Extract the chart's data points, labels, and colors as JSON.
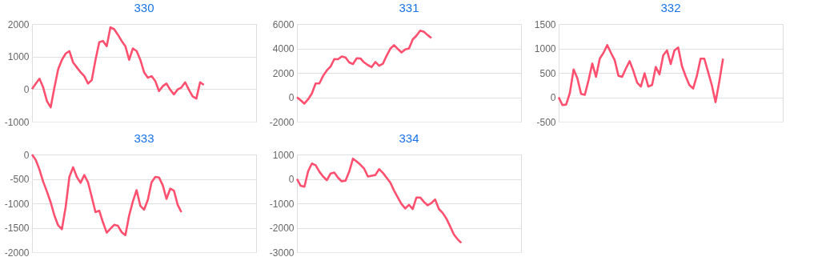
{
  "chart_data": [
    {
      "type": "line",
      "title": "330",
      "categories": [
        null,
        null,
        null,
        null,
        null,
        null,
        null,
        null,
        null,
        null,
        null,
        null,
        null,
        null,
        null,
        null,
        null,
        null,
        null,
        null,
        null,
        null,
        null,
        null,
        null,
        null,
        null,
        null,
        null,
        null,
        null,
        null,
        null,
        null,
        null,
        null,
        null,
        null,
        null,
        null,
        null,
        null,
        null,
        null,
        null,
        null,
        null,
        null,
        null,
        null,
        null,
        null,
        null,
        null,
        null,
        null,
        null,
        null,
        null,
        null,
        null
      ],
      "series": [
        {
          "color": "#ff5070",
          "values": [
            0,
            170,
            320,
            50,
            -370,
            -560,
            50,
            610,
            900,
            1090,
            1170,
            820,
            670,
            520,
            400,
            170,
            280,
            900,
            1440,
            1480,
            1320,
            1900,
            1840,
            1670,
            1480,
            1320,
            900,
            1250,
            1170,
            900,
            520,
            350,
            400,
            250,
            -60,
            90,
            170,
            -20,
            -160,
            -10,
            50,
            210,
            -20,
            -220,
            -290,
            210,
            130,
            null,
            null,
            null,
            null,
            null,
            null,
            null,
            null,
            null,
            null,
            null,
            null,
            null,
            null
          ]
        }
      ],
      "ylim": [
        -1000,
        2000
      ],
      "yticks": [
        -1000,
        0,
        1000,
        2000
      ],
      "grid": "y",
      "tick_labels": "y"
    },
    {
      "type": "line",
      "title": "331",
      "categories": [
        null,
        null,
        null,
        null,
        null,
        null,
        null,
        null,
        null,
        null,
        null,
        null,
        null,
        null,
        null,
        null,
        null,
        null,
        null,
        null,
        null,
        null,
        null,
        null,
        null,
        null,
        null,
        null,
        null,
        null,
        null,
        null,
        null,
        null,
        null,
        null,
        null,
        null,
        null,
        null,
        null,
        null,
        null,
        null,
        null,
        null,
        null,
        null,
        null,
        null,
        null,
        null,
        null,
        null,
        null,
        null,
        null,
        null,
        null,
        null,
        null
      ],
      "series": [
        {
          "color": "#ff5070",
          "values": [
            0,
            -250,
            -520,
            -160,
            310,
            1130,
            1130,
            1750,
            2200,
            2520,
            3130,
            3110,
            3340,
            3260,
            2850,
            2720,
            3200,
            3180,
            2850,
            2640,
            2470,
            2890,
            2580,
            2740,
            3400,
            3980,
            4270,
            3960,
            3670,
            3920,
            4000,
            4740,
            5050,
            5460,
            5360,
            5090,
            4850,
            null,
            null,
            null,
            null,
            null,
            null,
            null,
            null,
            null,
            null,
            null,
            null,
            null,
            null,
            null,
            null,
            null,
            null,
            null,
            null,
            null,
            null,
            null,
            null
          ]
        }
      ],
      "ylim": [
        -2000,
        6000
      ],
      "yticks": [
        -2000,
        0,
        2000,
        4000,
        6000
      ],
      "grid": "y",
      "tick_labels": "y"
    },
    {
      "type": "line",
      "title": "332",
      "categories": [
        null,
        null,
        null,
        null,
        null,
        null,
        null,
        null,
        null,
        null,
        null,
        null,
        null,
        null,
        null,
        null,
        null,
        null,
        null,
        null,
        null,
        null,
        null,
        null,
        null,
        null,
        null,
        null,
        null,
        null,
        null,
        null,
        null,
        null,
        null,
        null,
        null,
        null,
        null,
        null,
        null,
        null,
        null,
        null,
        null,
        null,
        null,
        null,
        null,
        null,
        null,
        null,
        null,
        null,
        null,
        null,
        null,
        null,
        null,
        null,
        null
      ],
      "series": [
        {
          "color": "#ff5070",
          "values": [
            0,
            -160,
            -150,
            90,
            570,
            390,
            70,
            50,
            350,
            690,
            420,
            790,
            910,
            1070,
            910,
            760,
            440,
            420,
            590,
            740,
            540,
            300,
            220,
            490,
            220,
            250,
            620,
            470,
            860,
            960,
            680,
            960,
            1020,
            640,
            430,
            250,
            180,
            440,
            790,
            790,
            520,
            250,
            -100,
            320,
            790,
            null,
            null,
            null,
            null,
            null,
            null,
            null,
            null,
            null,
            null,
            null,
            null,
            null,
            null,
            null,
            null
          ]
        }
      ],
      "ylim": [
        -500,
        1500
      ],
      "yticks": [
        -500,
        0,
        500,
        1000,
        1500
      ],
      "grid": "y",
      "tick_labels": "y"
    },
    {
      "type": "line",
      "title": "333",
      "categories": [
        null,
        null,
        null,
        null,
        null,
        null,
        null,
        null,
        null,
        null,
        null,
        null,
        null,
        null,
        null,
        null,
        null,
        null,
        null,
        null,
        null,
        null,
        null,
        null,
        null,
        null,
        null,
        null,
        null,
        null,
        null,
        null,
        null,
        null,
        null,
        null,
        null,
        null,
        null,
        null,
        null,
        null,
        null,
        null,
        null,
        null,
        null,
        null,
        null,
        null,
        null,
        null,
        null,
        null,
        null,
        null,
        null,
        null,
        null,
        null,
        null
      ],
      "series": [
        {
          "color": "#ff5070",
          "values": [
            0,
            -110,
            -310,
            -560,
            -760,
            -980,
            -1250,
            -1450,
            -1530,
            -1080,
            -460,
            -260,
            -460,
            -580,
            -420,
            -570,
            -870,
            -1180,
            -1150,
            -1390,
            -1600,
            -1520,
            -1440,
            -1460,
            -1590,
            -1650,
            -1250,
            -960,
            -730,
            -1050,
            -1130,
            -930,
            -570,
            -460,
            -470,
            -630,
            -910,
            -700,
            -740,
            -1030,
            -1180,
            null,
            null,
            null,
            null,
            null,
            null,
            null,
            null,
            null,
            null,
            null,
            null,
            null,
            null,
            null,
            null,
            null,
            null,
            null,
            null
          ]
        }
      ],
      "ylim": [
        -2000,
        0
      ],
      "yticks": [
        -2000,
        -1500,
        -1000,
        -500,
        0
      ],
      "grid": "y",
      "tick_labels": "y"
    },
    {
      "type": "line",
      "title": "334",
      "categories": [
        null,
        null,
        null,
        null,
        null,
        null,
        null,
        null,
        null,
        null,
        null,
        null,
        null,
        null,
        null,
        null,
        null,
        null,
        null,
        null,
        null,
        null,
        null,
        null,
        null,
        null,
        null,
        null,
        null,
        null,
        null,
        null,
        null,
        null,
        null,
        null,
        null,
        null,
        null,
        null,
        null,
        null,
        null,
        null,
        null,
        null,
        null,
        null,
        null,
        null,
        null,
        null,
        null,
        null,
        null,
        null,
        null,
        null,
        null,
        null,
        null
      ],
      "series": [
        {
          "color": "#ff5070",
          "values": [
            0,
            -280,
            -320,
            320,
            630,
            560,
            300,
            100,
            -50,
            220,
            260,
            50,
            -100,
            -70,
            300,
            830,
            710,
            580,
            420,
            100,
            130,
            160,
            400,
            250,
            50,
            -150,
            -480,
            -760,
            -1030,
            -1210,
            -1060,
            -1230,
            -760,
            -760,
            -940,
            -1080,
            -990,
            -840,
            -1230,
            -1390,
            -1620,
            -1940,
            -2270,
            -2470,
            -2620,
            null,
            null,
            null,
            null,
            null,
            null,
            null,
            null,
            null,
            null,
            null,
            null,
            null,
            null,
            null,
            null
          ]
        }
      ],
      "ylim": [
        -3000,
        1000
      ],
      "yticks": [
        -3000,
        -2000,
        -1000,
        0,
        1000
      ],
      "grid": "y",
      "tick_labels": "y"
    }
  ]
}
